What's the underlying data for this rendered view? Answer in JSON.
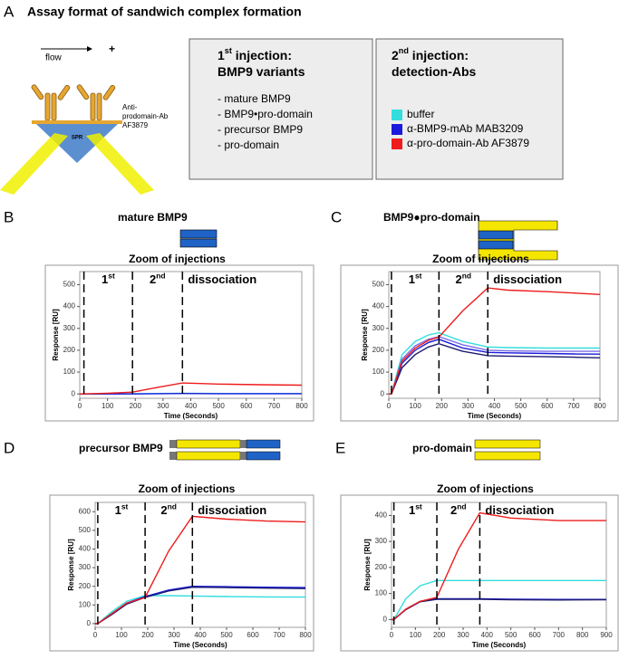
{
  "title": "Assay format of sandwich complex formation",
  "panel_a": {
    "label": "A",
    "flow": "flow",
    "plus": "+",
    "antibody": [
      "Anti-",
      "prodomain-Ab",
      "AF3879"
    ],
    "chip": "SPR",
    "box1": {
      "heading": [
        [
          "1",
          "st",
          " injection:"
        ],
        [
          "BMP9 variants"
        ]
      ],
      "items": [
        "- mature BMP9",
        "- BMP9•pro-domain",
        "- precursor BMP9",
        "- pro-domain"
      ]
    },
    "box2": {
      "heading": [
        [
          "2",
          "nd",
          " injection:"
        ],
        [
          "detection-Abs"
        ]
      ],
      "legend": [
        {
          "label": "buffer",
          "color": "#33dddd"
        },
        {
          "label": "α-BMP9-mAb MAB3209",
          "color": "#1a1adc"
        },
        {
          "label": "α-pro-domain-Ab AF3879",
          "color": "#ee1c1c"
        }
      ]
    }
  },
  "chart_data": [
    {
      "type": "line",
      "label": "B",
      "name": "mature BMP9",
      "title": "Zoom of injections",
      "phase_labels": [
        [
          "1",
          "st"
        ],
        [
          "2",
          "nd"
        ],
        [
          "dissociation"
        ]
      ],
      "markers": [
        15,
        190,
        370
      ],
      "xlabel": "Time (Seconds)",
      "ylabel": "Response [RU]",
      "xlim": [
        0,
        800
      ],
      "xticks": [
        0,
        100,
        200,
        300,
        400,
        500,
        600,
        700,
        800
      ],
      "ylim": [
        -20,
        560
      ],
      "yticks": [
        0,
        100,
        200,
        300,
        400,
        500
      ],
      "x": [
        0,
        100,
        190,
        280,
        370,
        500,
        650,
        800
      ],
      "series": [
        {
          "color": "#33dddd",
          "values": [
            0,
            0,
            1,
            2,
            3,
            2,
            2,
            2
          ]
        },
        {
          "color": "#1a1adc",
          "values": [
            0,
            0,
            0,
            1,
            2,
            1,
            1,
            1
          ]
        },
        {
          "color": "#ee1c1c",
          "values": [
            0,
            3,
            8,
            30,
            50,
            45,
            42,
            40
          ]
        }
      ]
    },
    {
      "type": "line",
      "label": "C",
      "name": "BMP9●pro-domain",
      "title": "Zoom of injections",
      "phase_labels": [
        [
          "1",
          "st"
        ],
        [
          "2",
          "nd"
        ],
        [
          "dissociation"
        ]
      ],
      "markers": [
        10,
        190,
        375
      ],
      "xlabel": "Time (Seconds)",
      "ylabel": "Response [RU]",
      "xlim": [
        0,
        800
      ],
      "xticks": [
        0,
        100,
        200,
        300,
        400,
        500,
        600,
        700,
        800
      ],
      "ylim": [
        -20,
        560
      ],
      "yticks": [
        0,
        100,
        200,
        300,
        400,
        500
      ],
      "x": [
        0,
        10,
        50,
        100,
        150,
        190,
        280,
        375,
        450,
        600,
        700,
        800
      ],
      "series": [
        {
          "color": "#33dddd",
          "values": [
            0,
            0,
            180,
            240,
            270,
            280,
            240,
            215,
            212,
            210,
            210,
            210
          ]
        },
        {
          "color": "#7a6ee6",
          "values": [
            0,
            0,
            160,
            220,
            250,
            262,
            225,
            200,
            197,
            195,
            195,
            195
          ]
        },
        {
          "color": "#1a1adc",
          "values": [
            0,
            0,
            140,
            200,
            235,
            250,
            210,
            190,
            188,
            185,
            183,
            182
          ]
        },
        {
          "color": "#1b1b6e",
          "values": [
            0,
            0,
            120,
            180,
            215,
            230,
            195,
            175,
            173,
            170,
            168,
            165
          ]
        },
        {
          "color": "#ee1c1c",
          "values": [
            0,
            0,
            150,
            210,
            245,
            260,
            380,
            485,
            475,
            468,
            462,
            455
          ]
        }
      ]
    },
    {
      "type": "line",
      "label": "D",
      "name": "precursor BMP9",
      "title": "Zoom of injections",
      "phase_labels": [
        [
          "1",
          "st"
        ],
        [
          "2",
          "nd"
        ],
        [
          "dissociation"
        ]
      ],
      "markers": [
        10,
        190,
        370
      ],
      "xlabel": "Time (Seconds)",
      "ylabel": "Response [RU]",
      "xlim": [
        0,
        800
      ],
      "xticks": [
        0,
        100,
        200,
        300,
        400,
        500,
        600,
        700,
        800
      ],
      "ylim": [
        -20,
        650
      ],
      "yticks": [
        0,
        100,
        200,
        300,
        400,
        500,
        600
      ],
      "x": [
        0,
        10,
        60,
        120,
        190,
        280,
        370,
        500,
        650,
        800
      ],
      "series": [
        {
          "color": "#33dddd",
          "values": [
            0,
            0,
            60,
            120,
            150,
            150,
            148,
            145,
            143,
            142
          ]
        },
        {
          "color": "#1a1adc",
          "values": [
            0,
            0,
            50,
            110,
            145,
            180,
            200,
            198,
            195,
            193
          ]
        },
        {
          "color": "#1b1b6e",
          "values": [
            0,
            0,
            45,
            105,
            140,
            175,
            195,
            193,
            190,
            188
          ]
        },
        {
          "color": "#ee1c1c",
          "values": [
            0,
            0,
            50,
            110,
            140,
            390,
            575,
            560,
            550,
            545
          ]
        }
      ]
    },
    {
      "type": "line",
      "label": "E",
      "name": "pro-domain",
      "title": "Zoom of injections",
      "phase_labels": [
        [
          "1",
          "st"
        ],
        [
          "2",
          "nd"
        ],
        [
          "dissociation"
        ]
      ],
      "markers": [
        10,
        190,
        370
      ],
      "xlabel": "Time (Seconds)",
      "ylabel": "Response [RU]",
      "xlim": [
        0,
        900
      ],
      "xticks": [
        0,
        100,
        200,
        300,
        400,
        500,
        600,
        700,
        800,
        900
      ],
      "ylim": [
        -30,
        450
      ],
      "yticks": [
        0,
        100,
        200,
        300,
        400
      ],
      "x": [
        0,
        10,
        60,
        120,
        190,
        280,
        370,
        500,
        700,
        900
      ],
      "series": [
        {
          "color": "#33dddd",
          "values": [
            0,
            0,
            80,
            130,
            150,
            150,
            150,
            150,
            150,
            150
          ]
        },
        {
          "color": "#1a1adc",
          "values": [
            0,
            0,
            40,
            70,
            80,
            80,
            80,
            78,
            77,
            77
          ]
        },
        {
          "color": "#1b1b6e",
          "values": [
            0,
            0,
            38,
            68,
            78,
            78,
            78,
            76,
            75,
            76
          ]
        },
        {
          "color": "#ee1c1c",
          "values": [
            0,
            0,
            40,
            70,
            85,
            270,
            410,
            390,
            380,
            380
          ]
        }
      ]
    }
  ]
}
